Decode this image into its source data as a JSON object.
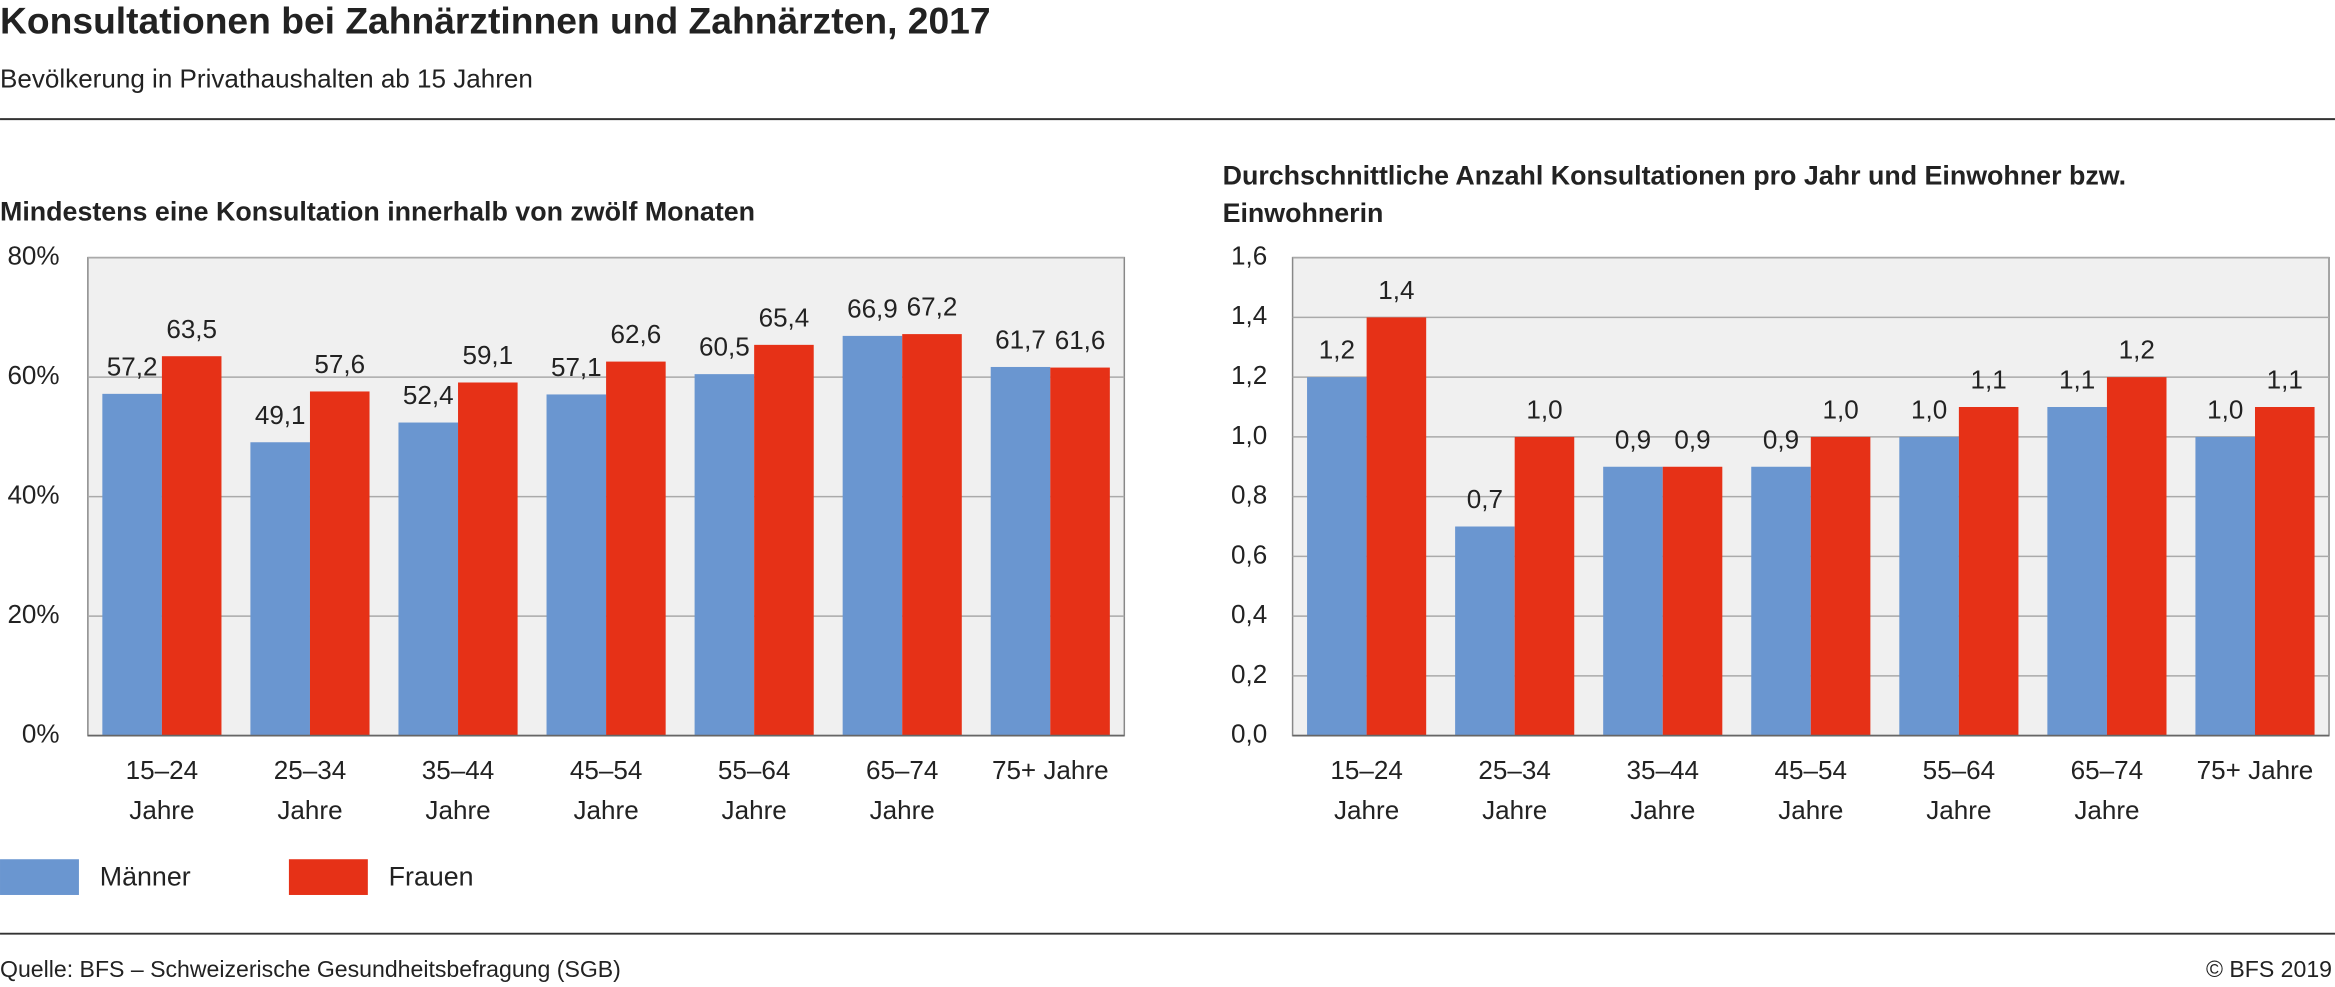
{
  "title": "Konsultationen bei Zahnärztinnen und Zahnärzten, 2017",
  "subtitle": "Bevölkerung in Privathaushalten ab 15 Jahren",
  "source": "Quelle: BFS – Schweizerische Gesundheitsbefragung (SGB)",
  "credit": "© BFS 2019",
  "chart_data": [
    {
      "type": "bar",
      "title": "Mindestens eine Konsultation innerhalb von zwölf Monaten",
      "categories": [
        "15–24 Jahre",
        "25–34 Jahre",
        "35–44 Jahre",
        "45–54 Jahre",
        "55–64 Jahre",
        "65–74 Jahre",
        "75+ Jahre"
      ],
      "series": [
        {
          "name": "Männer",
          "color": "#6a96d0",
          "values": [
            57.2,
            49.1,
            52.4,
            57.1,
            60.5,
            66.9,
            61.7
          ],
          "value_labels": [
            "57,2",
            "49,1",
            "52,4",
            "57,1",
            "60,5",
            "66,9",
            "61,7"
          ]
        },
        {
          "name": "Frauen",
          "color": "#e63117",
          "values": [
            63.5,
            57.6,
            59.1,
            62.6,
            65.4,
            67.2,
            61.6
          ],
          "value_labels": [
            "63,5",
            "57,6",
            "59,1",
            "62,6",
            "65,4",
            "67,2",
            "61,6"
          ]
        }
      ],
      "ylim": [
        0,
        80
      ],
      "yticks": [
        {
          "value": 0,
          "label": "0%"
        },
        {
          "value": 20,
          "label": "20%"
        },
        {
          "value": 40,
          "label": "40%"
        },
        {
          "value": 60,
          "label": "60%"
        },
        {
          "value": 80,
          "label": "80%"
        }
      ],
      "grid": true,
      "legend": "bottom"
    },
    {
      "type": "bar",
      "title": "Durchschnittliche Anzahl Konsultationen pro Jahr und Einwohner bzw. Einwohnerin",
      "categories": [
        "15–24 Jahre",
        "25–34 Jahre",
        "35–44 Jahre",
        "45–54 Jahre",
        "55–64 Jahre",
        "65–74 Jahre",
        "75+ Jahre"
      ],
      "series": [
        {
          "name": "Männer",
          "color": "#6a96d0",
          "values": [
            1.2,
            0.7,
            0.9,
            0.9,
            1.0,
            1.1,
            1.0
          ],
          "value_labels": [
            "1,2",
            "0,7",
            "0,9",
            "0,9",
            "1,0",
            "1,1",
            "1,0"
          ]
        },
        {
          "name": "Frauen",
          "color": "#e63117",
          "values": [
            1.4,
            1.0,
            0.9,
            1.0,
            1.1,
            1.2,
            1.1
          ],
          "value_labels": [
            "1,4",
            "1,0",
            "0,9",
            "1,0",
            "1,1",
            "1,2",
            "1,1"
          ]
        }
      ],
      "ylim": [
        0,
        1.6
      ],
      "yticks": [
        {
          "value": 0,
          "label": "0,0"
        },
        {
          "value": 0.2,
          "label": "0,2"
        },
        {
          "value": 0.4,
          "label": "0,4"
        },
        {
          "value": 0.6,
          "label": "0,6"
        },
        {
          "value": 0.8,
          "label": "0,8"
        },
        {
          "value": 1.0,
          "label": "1,0"
        },
        {
          "value": 1.2,
          "label": "1,2"
        },
        {
          "value": 1.4,
          "label": "1,4"
        },
        {
          "value": 1.6,
          "label": "1,6"
        }
      ],
      "grid": true
    }
  ]
}
